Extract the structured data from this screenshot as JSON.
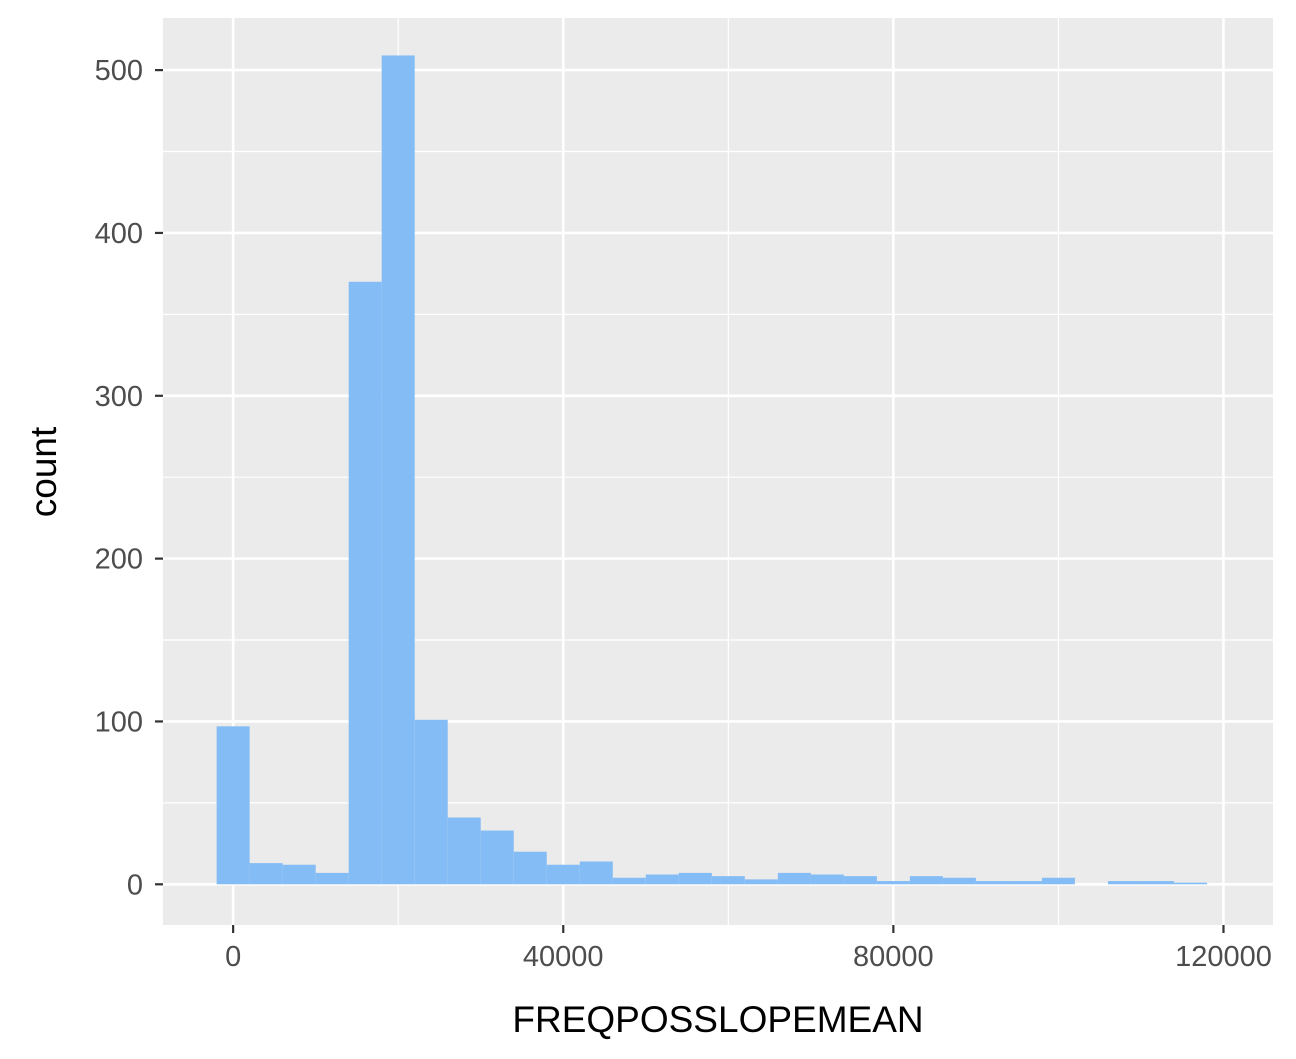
{
  "chart_data": {
    "type": "bar",
    "xlabel": "FREQPOSSLOPEMEAN",
    "ylabel": "count",
    "xlim": [
      -8500,
      126000
    ],
    "ylim": [
      -25,
      532
    ],
    "x_ticks": [
      {
        "value": 0,
        "label": "0"
      },
      {
        "value": 40000,
        "label": "40000"
      },
      {
        "value": 80000,
        "label": "80000"
      },
      {
        "value": 120000,
        "label": "120000"
      }
    ],
    "y_ticks": [
      {
        "value": 0,
        "label": "0"
      },
      {
        "value": 100,
        "label": "100"
      },
      {
        "value": 200,
        "label": "200"
      },
      {
        "value": 300,
        "label": "300"
      },
      {
        "value": 400,
        "label": "400"
      },
      {
        "value": 500,
        "label": "500"
      }
    ],
    "bin_width": 4000,
    "bins": [
      {
        "x": 0,
        "count": 97
      },
      {
        "x": 4000,
        "count": 13
      },
      {
        "x": 8000,
        "count": 12
      },
      {
        "x": 12000,
        "count": 7
      },
      {
        "x": 16000,
        "count": 370
      },
      {
        "x": 20000,
        "count": 509
      },
      {
        "x": 24000,
        "count": 101
      },
      {
        "x": 28000,
        "count": 41
      },
      {
        "x": 32000,
        "count": 33
      },
      {
        "x": 36000,
        "count": 20
      },
      {
        "x": 40000,
        "count": 12
      },
      {
        "x": 44000,
        "count": 14
      },
      {
        "x": 48000,
        "count": 4
      },
      {
        "x": 52000,
        "count": 6
      },
      {
        "x": 56000,
        "count": 7
      },
      {
        "x": 60000,
        "count": 5
      },
      {
        "x": 64000,
        "count": 3
      },
      {
        "x": 68000,
        "count": 7
      },
      {
        "x": 72000,
        "count": 6
      },
      {
        "x": 76000,
        "count": 5
      },
      {
        "x": 80000,
        "count": 2
      },
      {
        "x": 84000,
        "count": 5
      },
      {
        "x": 88000,
        "count": 4
      },
      {
        "x": 92000,
        "count": 2
      },
      {
        "x": 96000,
        "count": 2
      },
      {
        "x": 100000,
        "count": 4
      },
      {
        "x": 104000,
        "count": 0
      },
      {
        "x": 108000,
        "count": 2
      },
      {
        "x": 112000,
        "count": 2
      },
      {
        "x": 116000,
        "count": 1
      },
      {
        "x": 120000,
        "count": 0
      }
    ],
    "bar_color": "#84bcf5",
    "panel_background": "#ebebeb",
    "grid": true,
    "grid_color": "#ffffff"
  }
}
